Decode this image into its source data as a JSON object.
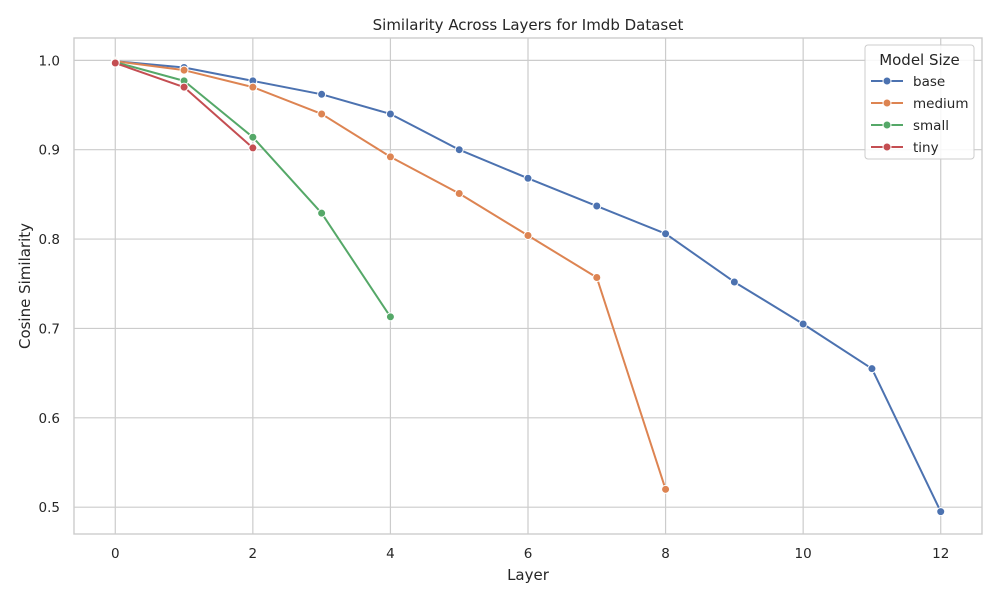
{
  "chart_data": {
    "type": "line",
    "title": "Similarity Across Layers for Imdb Dataset",
    "xlabel": "Layer",
    "ylabel": "Cosine Similarity",
    "xlim": [
      -0.6,
      12.6
    ],
    "ylim": [
      0.47,
      1.025
    ],
    "xticks": [
      0,
      2,
      4,
      6,
      8,
      10,
      12
    ],
    "yticks": [
      0.5,
      0.6,
      0.7,
      0.8,
      0.9,
      1.0
    ],
    "grid": true,
    "legend": {
      "title": "Model Size",
      "position": "top-right"
    },
    "series": [
      {
        "name": "base",
        "color": "#4c72b0",
        "x": [
          0,
          1,
          2,
          3,
          4,
          5,
          6,
          7,
          8,
          9,
          10,
          11,
          12
        ],
        "y": [
          0.999,
          0.992,
          0.977,
          0.962,
          0.94,
          0.9,
          0.868,
          0.837,
          0.806,
          0.752,
          0.705,
          0.655,
          0.495
        ]
      },
      {
        "name": "medium",
        "color": "#dd8452",
        "x": [
          0,
          1,
          2,
          3,
          4,
          5,
          6,
          7,
          8
        ],
        "y": [
          0.999,
          0.989,
          0.97,
          0.94,
          0.892,
          0.851,
          0.804,
          0.757,
          0.52
        ]
      },
      {
        "name": "small",
        "color": "#55a868",
        "x": [
          0,
          1,
          2,
          3,
          4
        ],
        "y": [
          0.998,
          0.977,
          0.914,
          0.829,
          0.713
        ]
      },
      {
        "name": "tiny",
        "color": "#c44e52",
        "x": [
          0,
          1,
          2
        ],
        "y": [
          0.997,
          0.97,
          0.902
        ]
      }
    ]
  }
}
